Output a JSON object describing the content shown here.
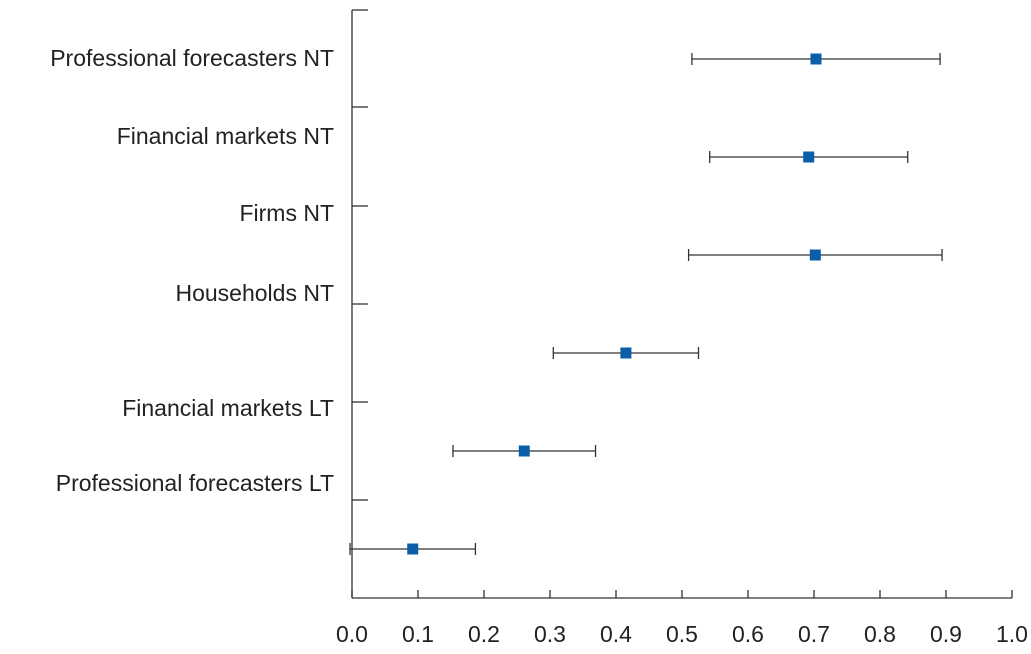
{
  "chart_data": {
    "type": "dot-errorbar",
    "categories": [
      "Professional forecasters NT",
      "Financial markets NT",
      "Firms NT",
      "Households NT",
      "Financial markets LT",
      "Professional forecasters LT"
    ],
    "values": [
      0.703,
      0.692,
      0.702,
      0.415,
      0.261,
      0.092
    ],
    "errors": [
      0.188,
      0.15,
      0.192,
      0.11,
      0.108,
      0.095
    ],
    "color": "#0a5fa8",
    "xlim": [
      0,
      1
    ],
    "xticks": [
      {
        "value": 0,
        "label": "0.0"
      },
      0.1,
      0.2,
      0.3,
      0.4,
      0.5,
      0.6,
      0.7,
      0.8,
      0.9,
      {
        "value": 1,
        "label": "1.0"
      }
    ],
    "grid": false
  }
}
